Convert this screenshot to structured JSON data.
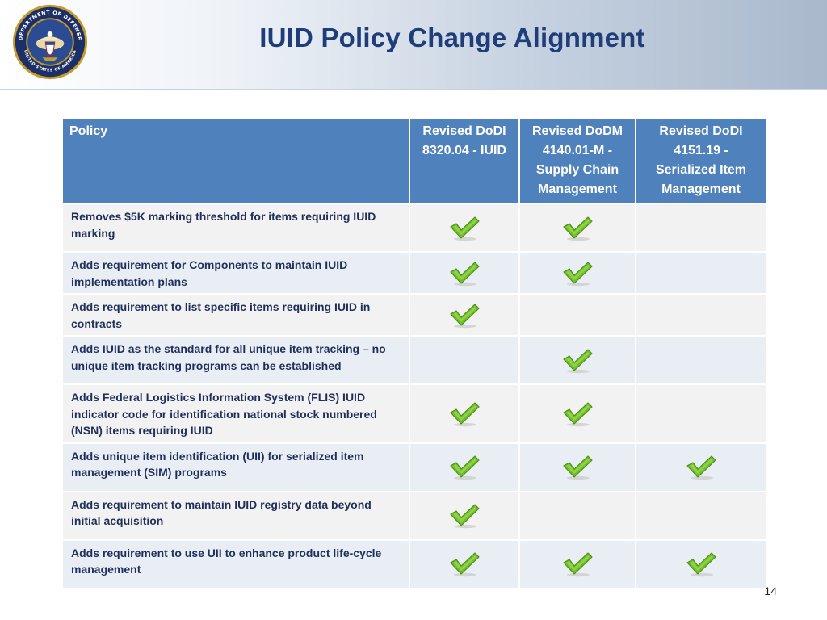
{
  "title": "IUID Policy Change Alignment",
  "seal": {
    "icon": "department-of-defense-seal",
    "text_top": "DEPARTMENT OF DEFENSE",
    "text_bottom": "UNITED STATES OF AMERICA"
  },
  "table": {
    "headers": [
      "Policy",
      "Revised DoDI 8320.04 - IUID",
      "Revised DoDM 4140.01-M - Supply Chain Management",
      "Revised DoDI 4151.19 - Serialized Item Management"
    ],
    "rows": [
      {
        "policy": "Removes $5K marking threshold for items requiring IUID marking",
        "checks": [
          true,
          true,
          false
        ]
      },
      {
        "policy": "Adds requirement for Components to maintain IUID implementation plans",
        "checks": [
          true,
          true,
          false
        ]
      },
      {
        "policy": "Adds requirement to list specific items requiring IUID in contracts",
        "checks": [
          true,
          false,
          false
        ]
      },
      {
        "policy": "Adds IUID as the standard for all unique item tracking – no unique item tracking programs can be established",
        "checks": [
          false,
          true,
          false
        ]
      },
      {
        "policy": "Adds Federal Logistics Information System  (FLIS) IUID indicator code for identification national stock numbered (NSN) items requiring IUID",
        "checks": [
          true,
          true,
          false
        ]
      },
      {
        "policy": "Adds unique item identification (UII) for serialized item management (SIM) programs",
        "checks": [
          true,
          true,
          true
        ]
      },
      {
        "policy": "Adds requirement to maintain IUID registry data beyond initial acquisition",
        "checks": [
          true,
          false,
          false
        ]
      },
      {
        "policy": "Adds requirement to use UII to enhance product life-cycle management",
        "checks": [
          true,
          true,
          true
        ]
      }
    ]
  },
  "colors": {
    "header_bg": "#4f81bd",
    "row_odd": "#e9edf4",
    "row_even": "#f2f2f2",
    "title": "#1f3d78",
    "check": "#6fbf2a"
  },
  "page_number": "14"
}
